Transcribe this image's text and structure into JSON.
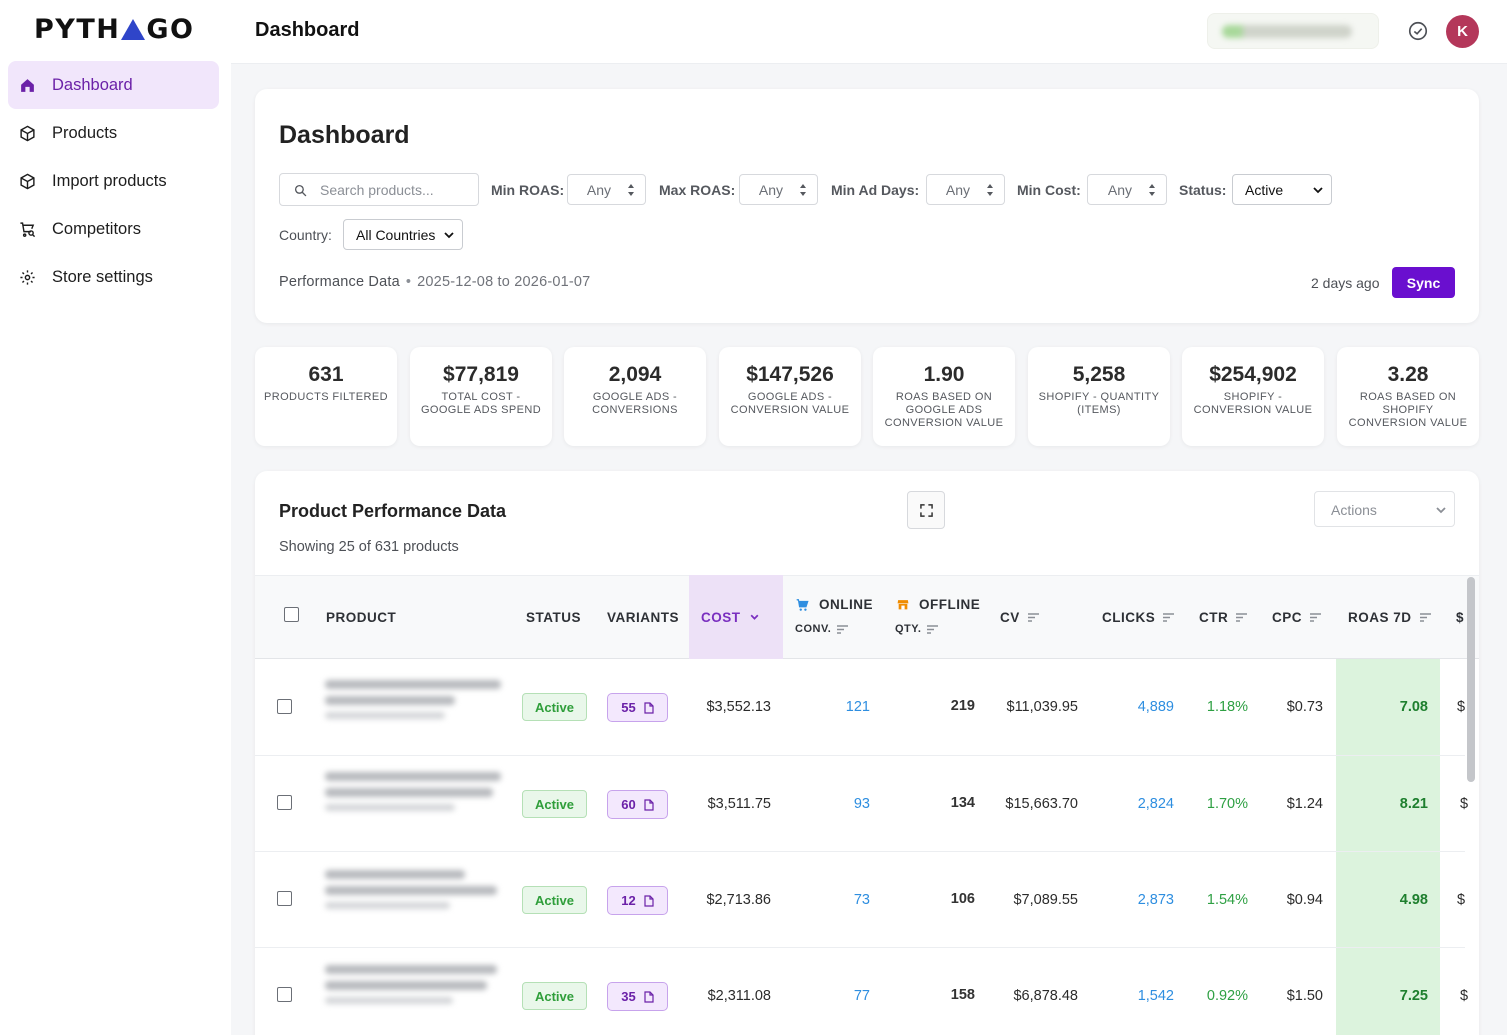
{
  "app": {
    "logo_left": "PYTH",
    "logo_right": "GO",
    "page_title": "Dashboard",
    "avatar_initial": "K",
    "store_name": "",
    "brand_color": "#6a0fcf"
  },
  "sidebar": {
    "items": [
      {
        "label": "Dashboard",
        "icon": "home-icon",
        "active": true
      },
      {
        "label": "Products",
        "icon": "box-icon"
      },
      {
        "label": "Import products",
        "icon": "box-icon"
      },
      {
        "label": "Competitors",
        "icon": "cart-search-icon"
      },
      {
        "label": "Store settings",
        "icon": "gear-icon"
      }
    ]
  },
  "filters": {
    "title": "Dashboard",
    "search_placeholder": "Search products...",
    "min_roas_label": "Min ROAS:",
    "min_roas_value": "Any",
    "max_roas_label": "Max ROAS:",
    "max_roas_value": "Any",
    "min_ad_days_label": "Min Ad Days:",
    "min_ad_days_value": "Any",
    "min_cost_label": "Min Cost:",
    "min_cost_value": "Any",
    "status_label": "Status:",
    "status_value": "Active",
    "country_label": "Country:",
    "country_value": "All Countries",
    "performance_label": "Performance Data",
    "date_range": "2025-12-08 to 2026-01-07",
    "last_sync": "2 days ago",
    "sync_label": "Sync"
  },
  "stats": [
    {
      "value": "631",
      "label": "Products Filtered"
    },
    {
      "value": "$77,819",
      "label": "Total Cost - Google Ads Spend"
    },
    {
      "value": "2,094",
      "label": "Google Ads - Conversions"
    },
    {
      "value": "$147,526",
      "label": "Google Ads - Conversion Value"
    },
    {
      "value": "1.90",
      "label": "ROAS Based on Google Ads Conversion Value"
    },
    {
      "value": "5,258",
      "label": "Shopify - Quantity (Items)"
    },
    {
      "value": "$254,902",
      "label": "Shopify - Conversion Value"
    },
    {
      "value": "3.28",
      "label": "ROAS Based on Shopify Conversion Value"
    }
  ],
  "table": {
    "title": "Product Performance Data",
    "subtitle": "Showing 25 of 631 products",
    "actions_placeholder": "Actions",
    "columns": {
      "product": "PRODUCT",
      "status": "STATUS",
      "variants": "VARIANTS",
      "cost": "COST",
      "online": "ONLINE",
      "online_sub": "CONV.",
      "offline": "OFFLINE",
      "offline_sub": "QTY.",
      "cv": "CV",
      "clicks": "CLICKS",
      "ctr": "CTR",
      "cpc": "CPC",
      "roas7d": "ROAS 7D",
      "next": "$"
    },
    "rows": [
      {
        "status": "Active",
        "variants": "55",
        "cost": "$3,552.13",
        "online": "121",
        "offline": "219",
        "cv": "$11,039.95",
        "clicks": "4,889",
        "ctr": "1.18%",
        "cpc": "$0.73",
        "roas7d": "7.08",
        "next": "$"
      },
      {
        "status": "Active",
        "variants": "60",
        "cost": "$3,511.75",
        "online": "93",
        "offline": "134",
        "cv": "$15,663.70",
        "clicks": "2,824",
        "ctr": "1.70%",
        "cpc": "$1.24",
        "roas7d": "8.21",
        "next": "$"
      },
      {
        "status": "Active",
        "variants": "12",
        "cost": "$2,713.86",
        "online": "73",
        "offline": "106",
        "cv": "$7,089.55",
        "clicks": "2,873",
        "ctr": "1.54%",
        "cpc": "$0.94",
        "roas7d": "4.98",
        "next": "$"
      },
      {
        "status": "Active",
        "variants": "35",
        "cost": "$2,311.08",
        "online": "77",
        "offline": "158",
        "cv": "$6,878.48",
        "clicks": "1,542",
        "ctr": "0.92%",
        "cpc": "$1.50",
        "roas7d": "7.25",
        "next": "$"
      }
    ]
  }
}
